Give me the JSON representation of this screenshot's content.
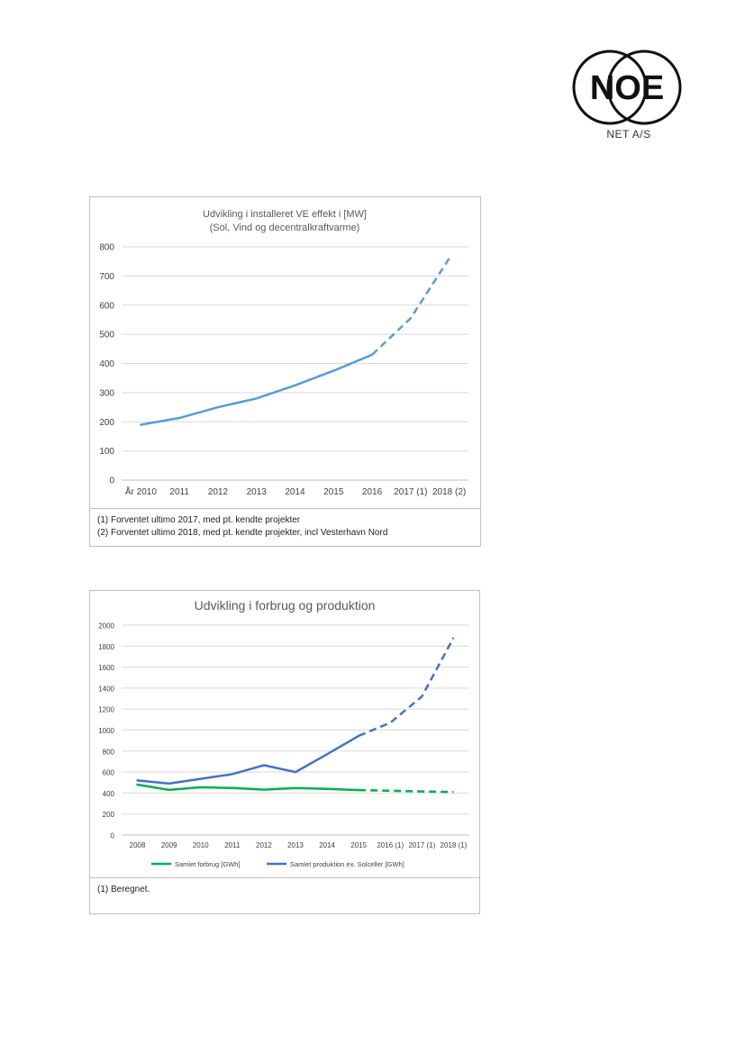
{
  "logo": {
    "text": "NOE",
    "subtitle": "NET A/S"
  },
  "chart_data": [
    {
      "type": "line",
      "title": "Udvikling i installeret VE effekt i [MW]",
      "subtitle": "(Sol, Vind og decentralkraftvarme)",
      "categories": [
        "År 2010",
        "2011",
        "2012",
        "2013",
        "2014",
        "2015",
        "2016",
        "2017 (1)",
        "2018 (2)"
      ],
      "series": [
        {
          "values": [
            190,
            213,
            250,
            280,
            325,
            375,
            430,
            555,
            760
          ],
          "color": "#5b9bd5",
          "dashed_from_index": 6
        }
      ],
      "ylim": [
        0,
        800
      ],
      "yticks": [
        0,
        100,
        200,
        300,
        400,
        500,
        600,
        700,
        800
      ],
      "grid": true,
      "legend": "none",
      "notes": [
        "(1) Forventet ultimo 2017, med pt. kendte projekter",
        "(2) Forventet ultimo 2018, med pt. kendte projekter, incl Vesterhavn Nord"
      ]
    },
    {
      "type": "line",
      "title": "Udvikling i forbrug og produktion",
      "categories": [
        "2008",
        "2009",
        "2010",
        "2011",
        "2012",
        "2013",
        "2014",
        "2015",
        "2016 (1)",
        "2017 (1)",
        "2018 (1)"
      ],
      "series": [
        {
          "name": "Samlet forbrug [GWh]",
          "values": [
            480,
            430,
            455,
            448,
            432,
            447,
            440,
            428,
            422,
            415,
            410
          ],
          "color": "#00b050",
          "dashed_from_index": 7
        },
        {
          "name": "Samlet produktion ex. Solceller [GWh]",
          "values": [
            520,
            490,
            535,
            580,
            665,
            600,
            770,
            945,
            1070,
            1320,
            1880
          ],
          "color": "#4472c4",
          "dashed_from_index": 7
        }
      ],
      "ylim": [
        0,
        2000
      ],
      "yticks": [
        0,
        200,
        400,
        600,
        800,
        1000,
        1200,
        1400,
        1600,
        1800,
        2000
      ],
      "grid": true,
      "legend": "bottom",
      "notes": [
        "(1) Beregnet."
      ]
    }
  ]
}
